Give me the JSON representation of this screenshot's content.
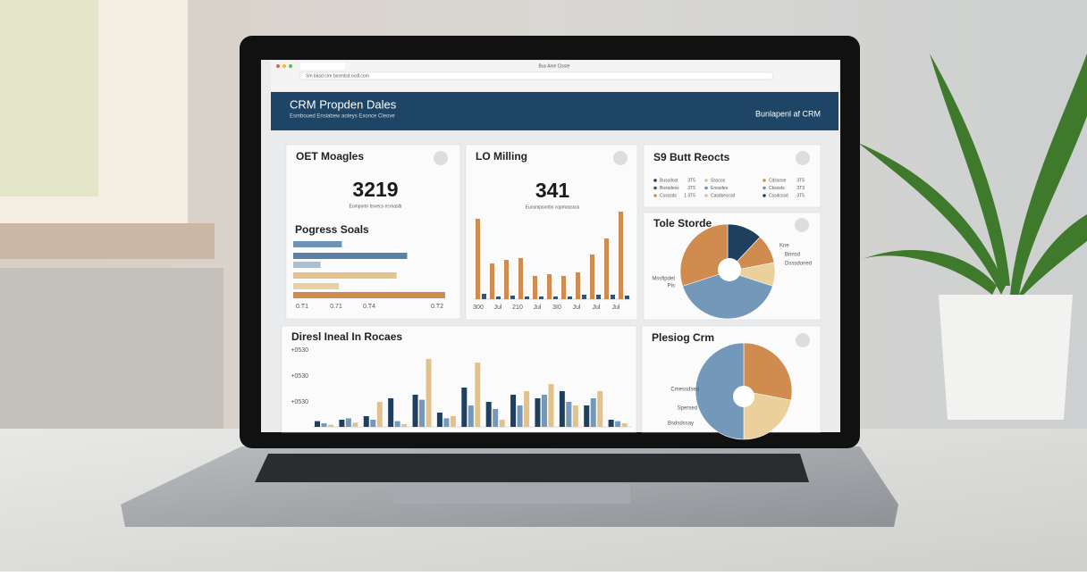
{
  "browser": {
    "tab": "Bus Anle Clsste",
    "url": "Sm basd crm bosmlsd.ocdl.com"
  },
  "header": {
    "title": "CRM Propden Dales",
    "subtitle": "Esmboued Ensiabew aoteys Exonce Cleove",
    "right": "Bunlapenl af CRM"
  },
  "kpi_a": {
    "title": "OET Moagles",
    "value": "3219",
    "caption": "Eumportn bsvecs ecrnaslb"
  },
  "progress": {
    "title": "Pogress Soals",
    "xlim": [
      0,
      100
    ],
    "values": [
      32,
      75,
      18,
      68,
      30,
      100
    ],
    "colors": [
      "#6f93b5",
      "#5b80a6",
      "#a9bfd3",
      "#e2c28c",
      "#e8cfa4",
      "#d08c4f"
    ],
    "axis_labels": [
      "0.T1",
      "0.71",
      "0.T4",
      "0.T2"
    ]
  },
  "kpi_b": {
    "title": "LO Milling",
    "value": "341",
    "caption": "Eunsmpsonbs copmasssss",
    "ylim": [
      0,
      100
    ],
    "series": [
      {
        "color": "#d08c4f",
        "values": [
          90,
          40,
          44,
          46,
          26,
          28,
          26,
          30,
          50,
          68,
          98
        ]
      },
      {
        "color": "#2f5678",
        "values": [
          6,
          3,
          4,
          3,
          3,
          3,
          3,
          5,
          5,
          5,
          4
        ]
      }
    ],
    "axis_labels": [
      "300",
      "Jul",
      "210",
      "Jul",
      "3I0",
      "Jul",
      "Jul",
      "Jul"
    ]
  },
  "legend_card": {
    "title": "S9 Butt Reocts",
    "items": [
      {
        "label": "Bussdost",
        "value": "3T5",
        "color": "#1f3f5f"
      },
      {
        "label": "Ssscos",
        "value": "",
        "color": "#e2c28c"
      },
      {
        "label": "Cdssnse",
        "value": "3T5",
        "color": "#d08c4f"
      },
      {
        "label": "Bossdess",
        "value": "3T5",
        "color": "#2f5678"
      },
      {
        "label": "Enssdes",
        "value": "",
        "color": "#6f93b5"
      },
      {
        "label": "Cbsssts",
        "value": "3T3",
        "color": "#6f93b5"
      },
      {
        "label": "Cssssds",
        "value": "1 3T5",
        "color": "#d08c4f"
      },
      {
        "label": "Casdsescsd",
        "value": "",
        "color": "#e2c28c"
      },
      {
        "label": "Cssdcssd",
        "value": "3T5",
        "color": "#1f3f5f"
      }
    ]
  },
  "pie_a": {
    "title": "Tole Storde",
    "values": [
      12,
      10,
      8,
      40,
      30
    ],
    "colors": [
      "#1f3f5f",
      "#d08c4f",
      "#ecd09b",
      "#7498ba",
      "#d08c4f"
    ],
    "labels": [
      "Kne",
      "Bnnsd",
      "Dsssdoned",
      "Mssfipdet",
      "Pis"
    ]
  },
  "bars_c": {
    "title": "Diresl Ineal In Rocaes",
    "ylim": [
      0,
      100
    ],
    "axis_labels": [
      "+0530",
      "+0530",
      "+0530"
    ],
    "series": [
      {
        "color": "#1f3f5f",
        "values": [
          8,
          10,
          15,
          40,
          45,
          20,
          55,
          35,
          45,
          40,
          50,
          30,
          10
        ]
      },
      {
        "color": "#7498ba",
        "values": [
          5,
          12,
          10,
          8,
          38,
          12,
          30,
          25,
          30,
          45,
          35,
          40,
          8
        ]
      },
      {
        "color": "#e2c28c",
        "values": [
          3,
          6,
          35,
          4,
          95,
          15,
          90,
          10,
          50,
          60,
          30,
          50,
          5
        ]
      }
    ]
  },
  "pie_b": {
    "title": "Plesiog Crm",
    "values": [
      28,
      22,
      50
    ],
    "colors": [
      "#d08c4f",
      "#ecd09b",
      "#7498ba"
    ],
    "labels": [
      "Cmessdsed",
      "Spersed",
      "Bsdsdssay"
    ]
  }
}
